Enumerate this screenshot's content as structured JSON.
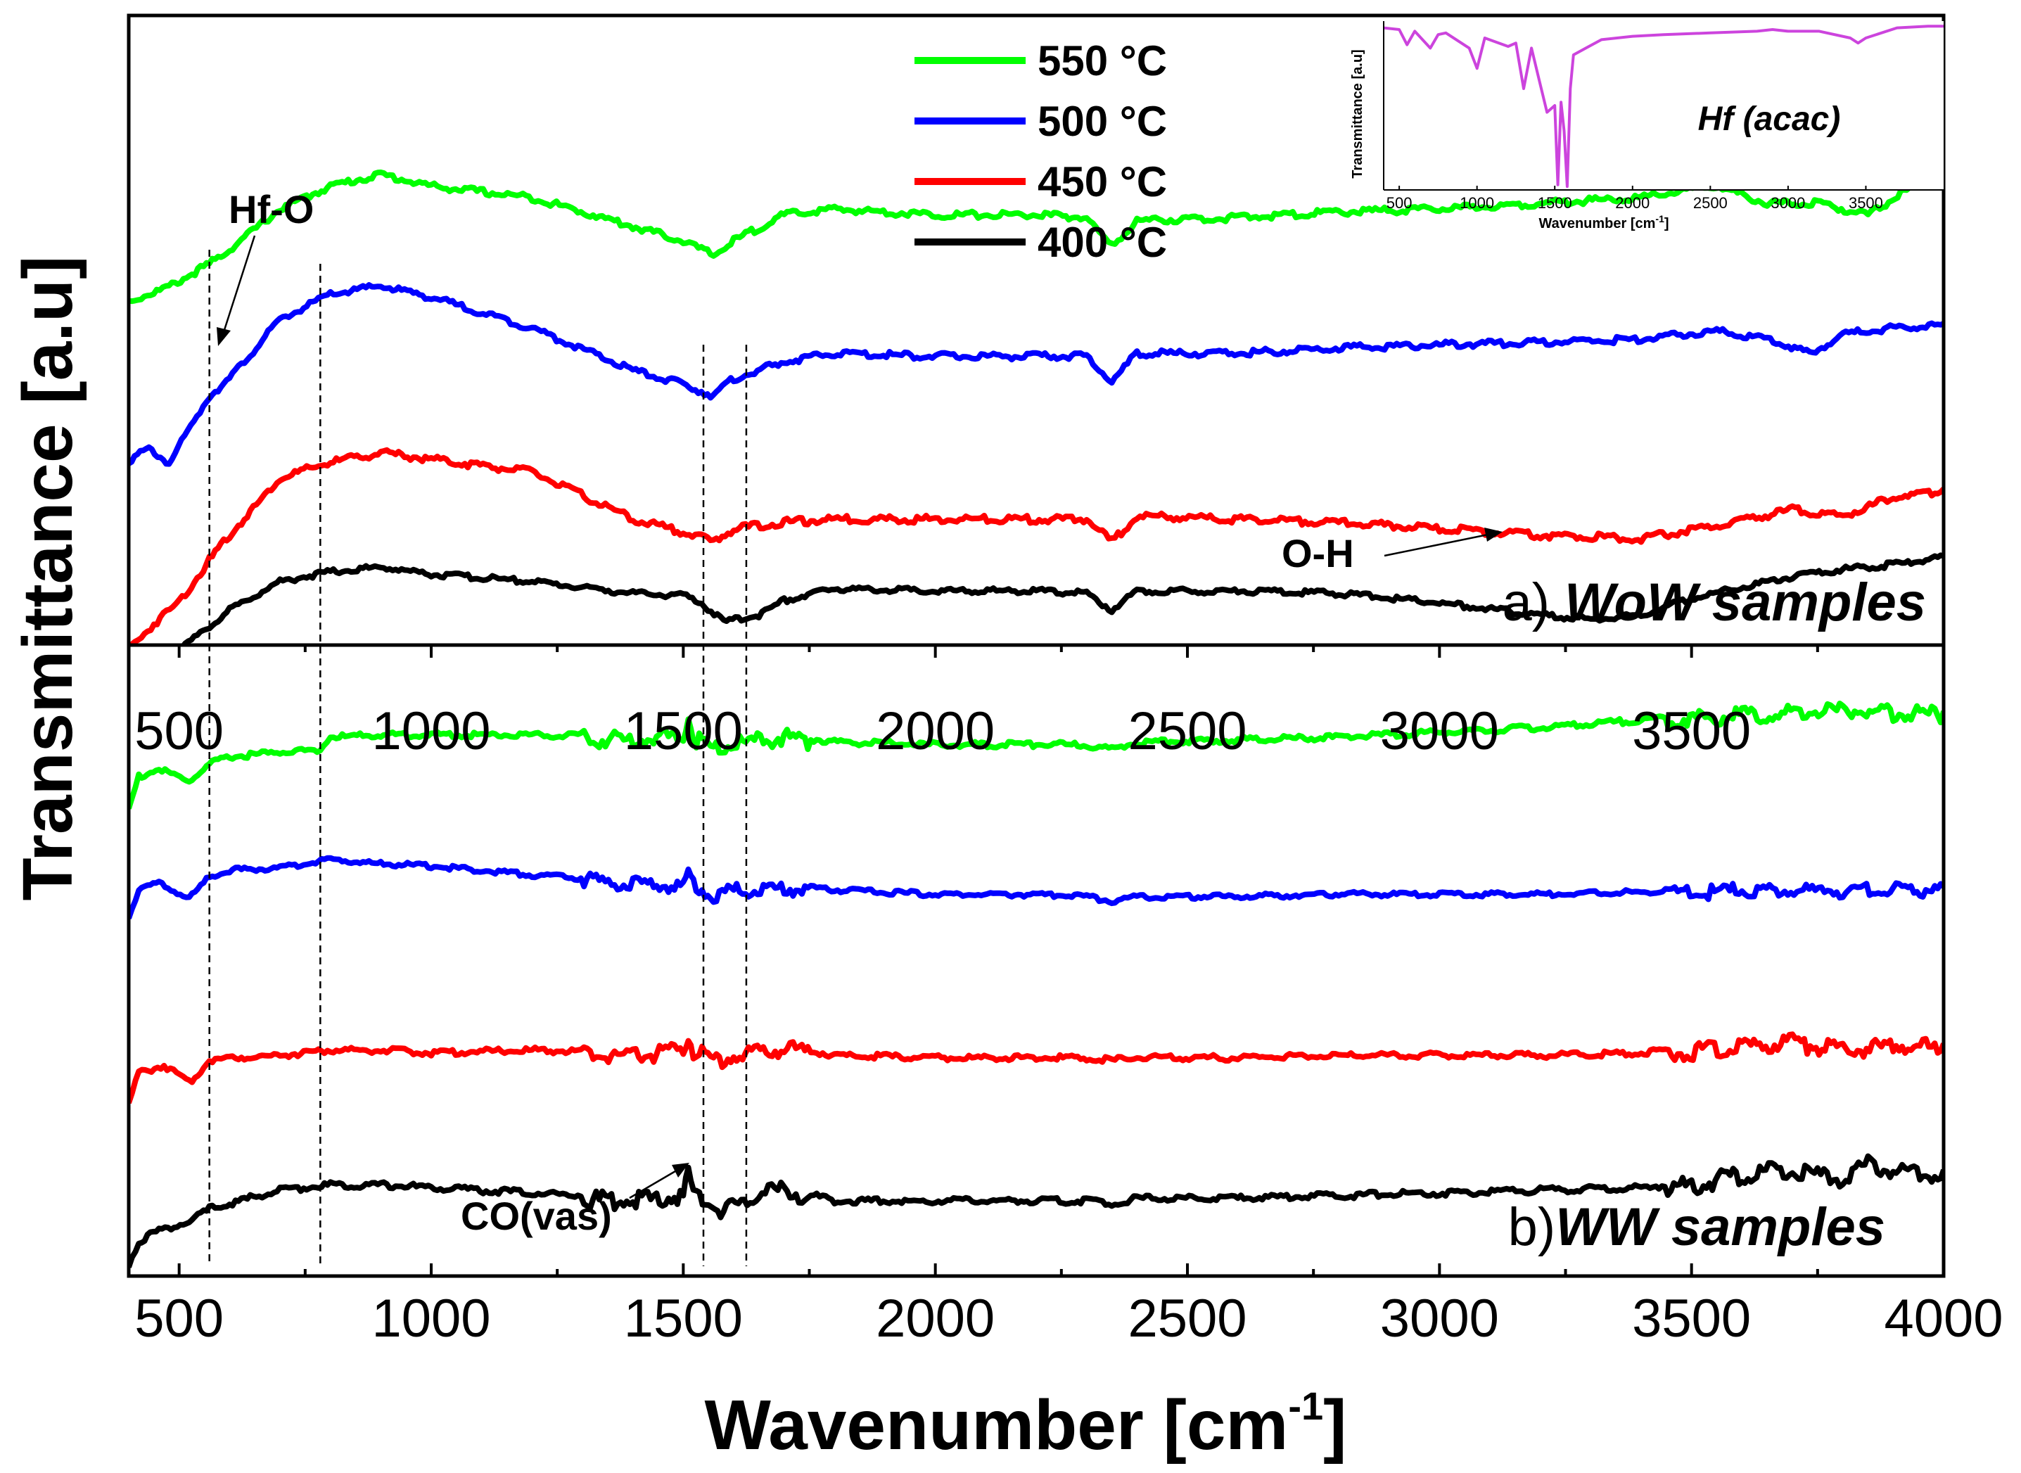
{
  "chart_data": {
    "type": "line",
    "title": "",
    "xlabel": "Wavenumber [cm⁻¹]",
    "xlabel_main": "Wavenumber [cm",
    "xlabel_sup": "-1",
    "xlabel_close": "]",
    "ylabel": "Transmittance [a.u]",
    "xlim": [
      400,
      4000
    ],
    "xticks": [
      500,
      1000,
      1500,
      2000,
      2500,
      3000,
      3500,
      4000
    ],
    "mid_xticks": [
      500,
      1000,
      1500,
      2000,
      2500,
      3000,
      3500
    ],
    "legend": {
      "location": "top-center",
      "entries": [
        {
          "label": "550 °C",
          "color": "#00ff00"
        },
        {
          "label": "500 °C",
          "color": "#0000ff"
        },
        {
          "label": "450 °C",
          "color": "#ff0000"
        },
        {
          "label": "400 °C",
          "color": "#000000"
        }
      ]
    },
    "reference_lines_x": [
      560,
      780,
      1540,
      1625
    ],
    "panels": [
      {
        "id": "a",
        "label_prefix": "a) ",
        "label_name": "WoW samples",
        "ylim": [
          0,
          10
        ],
        "annotations": [
          {
            "text": "Hf-O",
            "x": 570
          },
          {
            "text": "O-H",
            "x": 3120
          }
        ],
        "series": [
          {
            "name": "550 °C",
            "color": "#00ff00",
            "x": [
              400,
              480,
              520,
              560,
              600,
              700,
              800,
              900,
              1000,
              1200,
              1400,
              1500,
              1560,
              1600,
              1700,
              1800,
              2000,
              2200,
              2300,
              2350,
              2400,
              2600,
              2800,
              3000,
              3200,
              3400,
              3550,
              3650,
              3750,
              3850,
              3950,
              4000
            ],
            "y": [
              4.0,
              4.5,
              4.9,
              5.3,
              5.8,
              7.2,
              8.0,
              8.4,
              8.0,
              7.6,
              6.6,
              6.1,
              5.6,
              6.1,
              7.0,
              7.2,
              7.0,
              7.0,
              6.9,
              5.9,
              6.8,
              6.9,
              7.1,
              7.2,
              7.4,
              7.6,
              8.0,
              7.4,
              7.4,
              7.0,
              8.1,
              8.2
            ]
          },
          {
            "name": "500 °C",
            "color": "#0000ff",
            "x": [
              400,
              440,
              480,
              560,
              600,
              700,
              800,
              900,
              1000,
              1200,
              1400,
              1500,
              1560,
              1600,
              1700,
              1800,
              2000,
              2200,
              2300,
              2350,
              2400,
              2600,
              2800,
              3000,
              3200,
              3400,
              3550,
              3650,
              3740,
              3800,
              3900,
              4000
            ],
            "y": [
              1.7,
              2.1,
              1.6,
              4.0,
              4.6,
              6.7,
              7.6,
              7.9,
              7.5,
              6.4,
              4.9,
              4.4,
              4.0,
              4.6,
              5.2,
              5.5,
              5.4,
              5.4,
              5.4,
              4.5,
              5.5,
              5.5,
              5.7,
              5.8,
              5.9,
              6.0,
              6.3,
              6.0,
              5.5,
              6.2,
              6.4,
              6.5
            ]
          },
          {
            "name": "450 °C",
            "color": "#ff0000",
            "x": [
              400,
              450,
              500,
              560,
              600,
              700,
              800,
              900,
              1000,
              1200,
              1400,
              1500,
              1560,
              1600,
              1700,
              1800,
              2000,
              2200,
              2300,
              2350,
              2400,
              2600,
              2800,
              3000,
              3200,
              3400,
              3550,
              3700,
              3800,
              3900,
              4000
            ],
            "y": [
              0.0,
              0.8,
              1.5,
              2.8,
              3.6,
              5.4,
              5.9,
              6.2,
              6.0,
              5.6,
              4.1,
              3.7,
              3.4,
              3.8,
              4.0,
              4.1,
              4.1,
              4.1,
              4.1,
              3.4,
              4.2,
              4.1,
              4.0,
              3.8,
              3.6,
              3.5,
              3.9,
              4.4,
              4.2,
              4.8,
              5.0
            ]
          },
          {
            "name": "400 °C",
            "color": "#000000",
            "x": [
              400,
              460,
              500,
              560,
              600,
              700,
              800,
              900,
              1000,
              1200,
              1400,
              1500,
              1530,
              1580,
              1650,
              1700,
              1800,
              2000,
              2200,
              2300,
              2350,
              2400,
              2600,
              2800,
              3000,
              3200,
              3300,
              3400,
              3500,
              3700,
              3800,
              3900,
              4000
            ],
            "y": [
              -0.5,
              0.0,
              0.5,
              1.5,
              2.2,
              3.4,
              3.8,
              4.0,
              3.7,
              3.4,
              2.9,
              2.8,
              2.6,
              1.7,
              2.0,
              2.6,
              3.1,
              3.0,
              3.0,
              2.9,
              2.2,
              3.0,
              3.0,
              2.9,
              2.5,
              2.0,
              1.8,
              2.0,
              2.7,
              3.6,
              3.9,
              4.1,
              4.4
            ]
          }
        ]
      },
      {
        "id": "b",
        "label_prefix": "b)",
        "label_name": "WW samples",
        "ylim": [
          0,
          10
        ],
        "annotations": [
          {
            "text": "CO(vas)",
            "x": 1540
          }
        ],
        "series": [
          {
            "name": "550 °C",
            "color": "#00ff00",
            "x": [
              400,
              420,
              460,
              520,
              560,
              600,
              700,
              780,
              800,
              900,
              1000,
              1200,
              1400,
              1500,
              1510,
              1520,
              1560,
              1600,
              1700,
              1800,
              2000,
              2200,
              2300,
              2350,
              2400,
              2600,
              2800,
              3000,
              3200,
              3400,
              3600,
              3800,
              3900,
              4000
            ],
            "y": [
              5.5,
              6.8,
              7.1,
              6.6,
              7.3,
              7.6,
              7.8,
              7.9,
              8.4,
              8.5,
              8.5,
              8.5,
              8.4,
              8.6,
              9.3,
              8.5,
              8.1,
              8.2,
              8.5,
              8.2,
              8.1,
              8.1,
              8.1,
              7.9,
              8.2,
              8.3,
              8.4,
              8.6,
              8.8,
              9.1,
              9.4,
              9.6,
              9.5,
              9.4
            ]
          },
          {
            "name": "500 °C",
            "color": "#0000ff",
            "x": [
              400,
              420,
              460,
              520,
              560,
              600,
              700,
              800,
              900,
              1000,
              1200,
              1400,
              1500,
              1510,
              1520,
              1560,
              1600,
              1700,
              1800,
              2000,
              2200,
              2300,
              2350,
              2400,
              2600,
              2800,
              3000,
              3200,
              3400,
              3600,
              3800,
              3900,
              4000
            ],
            "y": [
              4.4,
              5.8,
              6.0,
              5.3,
              6.3,
              6.6,
              6.7,
              7.1,
              6.9,
              6.8,
              6.4,
              6.1,
              6.0,
              6.6,
              6.0,
              5.6,
              5.8,
              5.9,
              5.7,
              5.5,
              5.5,
              5.4,
              5.2,
              5.4,
              5.4,
              5.5,
              5.5,
              5.5,
              5.6,
              5.8,
              5.8,
              5.9,
              5.8
            ]
          },
          {
            "name": "450 °C",
            "color": "#ff0000",
            "x": [
              400,
              420,
              470,
              520,
              560,
              600,
              700,
              800,
              900,
              1000,
              1200,
              1400,
              1500,
              1510,
              1520,
              1560,
              1600,
              1700,
              1800,
              2000,
              2200,
              2300,
              2350,
              2400,
              2600,
              2800,
              3000,
              3200,
              3400,
              3600,
              3700,
              3800,
              3900,
              4000
            ],
            "y": [
              2.6,
              3.8,
              4.1,
              3.4,
              4.3,
              4.4,
              4.5,
              4.7,
              4.7,
              4.6,
              4.7,
              4.6,
              4.8,
              5.5,
              4.8,
              4.4,
              4.6,
              4.9,
              4.5,
              4.4,
              4.4,
              4.4,
              4.3,
              4.4,
              4.4,
              4.5,
              4.5,
              4.5,
              4.6,
              4.9,
              5.1,
              4.8,
              5.0,
              4.9
            ]
          },
          {
            "name": "400 °C",
            "color": "#000000",
            "x": [
              400,
              420,
              460,
              520,
              560,
              600,
              700,
              800,
              900,
              1000,
              1200,
              1400,
              1500,
              1510,
              1520,
              1580,
              1650,
              1700,
              1800,
              2000,
              2200,
              2300,
              2350,
              2400,
              2600,
              2800,
              3000,
              3200,
              3400,
              3500,
              3600,
              3700,
              3750,
              3800,
              3850,
              3900,
              4000
            ],
            "y": [
              0.1,
              1.0,
              1.4,
              1.7,
              2.2,
              2.4,
              2.9,
              3.1,
              3.1,
              3.0,
              2.8,
              2.6,
              2.8,
              3.6,
              2.9,
              2.2,
              2.9,
              3.0,
              2.5,
              2.5,
              2.5,
              2.5,
              2.4,
              2.6,
              2.6,
              2.7,
              2.8,
              2.9,
              3.0,
              3.2,
              3.6,
              3.8,
              3.5,
              3.4,
              4.0,
              3.8,
              3.6
            ]
          }
        ]
      }
    ],
    "inset": {
      "name": "Hf (acac)",
      "xlabel": "Wavenumber [cm",
      "xlabel_sup": "-1",
      "xlabel_close": "]",
      "ylabel": "Transmittance [a.u]",
      "xlim": [
        400,
        4000
      ],
      "ylim": [
        0,
        10
      ],
      "xticks": [
        500,
        1000,
        1500,
        2000,
        2500,
        3000,
        3500
      ],
      "series": {
        "color": "#cc44dd",
        "x": [
          400,
          500,
          550,
          600,
          700,
          750,
          800,
          950,
          1000,
          1050,
          1200,
          1250,
          1300,
          1350,
          1400,
          1450,
          1500,
          1520,
          1540,
          1560,
          1580,
          1600,
          1620,
          1700,
          1800,
          2000,
          2200,
          2500,
          2800,
          2900,
          3000,
          3200,
          3400,
          3450,
          3500,
          3700,
          3900,
          4000
        ],
        "y": [
          9.6,
          9.5,
          8.6,
          9.4,
          8.4,
          9.2,
          9.3,
          8.4,
          7.2,
          9.0,
          8.5,
          8.7,
          6.0,
          8.4,
          6.5,
          4.6,
          5.0,
          0.3,
          5.2,
          3.5,
          0.2,
          6.0,
          8.0,
          8.4,
          8.9,
          9.1,
          9.2,
          9.3,
          9.4,
          9.5,
          9.4,
          9.4,
          9.0,
          8.7,
          9.0,
          9.6,
          9.7,
          9.7
        ]
      }
    }
  }
}
